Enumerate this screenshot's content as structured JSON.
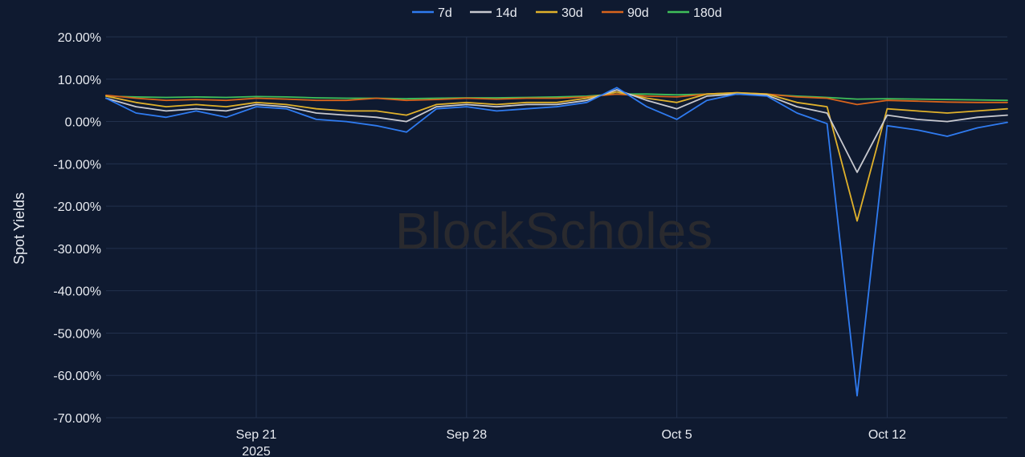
{
  "watermark": "BlockScholes",
  "chart_data": {
    "type": "line",
    "ylabel": "Spot Yields",
    "xlabel": "",
    "title": "",
    "ylim": [
      -70,
      20
    ],
    "yticks": [
      {
        "value": 20,
        "label": "20.00%"
      },
      {
        "value": 10,
        "label": "10.00%"
      },
      {
        "value": 0,
        "label": "0.00%"
      },
      {
        "value": -10,
        "label": "-10.00%"
      },
      {
        "value": -20,
        "label": "-20.00%"
      },
      {
        "value": -30,
        "label": "-30.00%"
      },
      {
        "value": -40,
        "label": "-40.00%"
      },
      {
        "value": -50,
        "label": "-50.00%"
      },
      {
        "value": -60,
        "label": "-60.00%"
      },
      {
        "value": -70,
        "label": "-70.00%"
      }
    ],
    "xlim": [
      "2025-09-16",
      "2025-10-16"
    ],
    "xticks": [
      {
        "value": "2025-09-21",
        "label": "Sep 21",
        "sublabel": "2025"
      },
      {
        "value": "2025-09-28",
        "label": "Sep 28",
        "sublabel": ""
      },
      {
        "value": "2025-10-05",
        "label": "Oct 5",
        "sublabel": ""
      },
      {
        "value": "2025-10-12",
        "label": "Oct 12",
        "sublabel": ""
      }
    ],
    "grid": true,
    "legend": {
      "placement": "top-center"
    },
    "series": [
      {
        "name": "7d",
        "color": "#2f7bf0",
        "x": [
          "2025-09-16",
          "2025-09-17",
          "2025-09-18",
          "2025-09-19",
          "2025-09-20",
          "2025-09-21",
          "2025-09-22",
          "2025-09-23",
          "2025-09-24",
          "2025-09-25",
          "2025-09-26",
          "2025-09-27",
          "2025-09-28",
          "2025-09-29",
          "2025-09-30",
          "2025-10-01",
          "2025-10-02",
          "2025-10-03",
          "2025-10-04",
          "2025-10-05",
          "2025-10-06",
          "2025-10-07",
          "2025-10-08",
          "2025-10-09",
          "2025-10-10",
          "2025-10-11",
          "2025-10-12",
          "2025-10-13",
          "2025-10-14",
          "2025-10-15",
          "2025-10-16"
        ],
        "y": [
          5.5,
          2.0,
          1.0,
          2.5,
          1.0,
          3.5,
          3.0,
          0.5,
          0.0,
          -1.0,
          -2.5,
          3.0,
          3.5,
          2.5,
          3.0,
          3.5,
          4.5,
          8.0,
          3.5,
          0.5,
          5.0,
          6.5,
          6.0,
          2.0,
          -0.5,
          -64.8,
          -1.0,
          -2.0,
          -3.5,
          -1.5,
          -0.2
        ]
      },
      {
        "name": "14d",
        "color": "#c8c9cf",
        "x": [
          "2025-09-16",
          "2025-09-17",
          "2025-09-18",
          "2025-09-19",
          "2025-09-20",
          "2025-09-21",
          "2025-09-22",
          "2025-09-23",
          "2025-09-24",
          "2025-09-25",
          "2025-09-26",
          "2025-09-27",
          "2025-09-28",
          "2025-09-29",
          "2025-09-30",
          "2025-10-01",
          "2025-10-02",
          "2025-10-03",
          "2025-10-04",
          "2025-10-05",
          "2025-10-06",
          "2025-10-07",
          "2025-10-08",
          "2025-10-09",
          "2025-10-10",
          "2025-10-11",
          "2025-10-12",
          "2025-10-13",
          "2025-10-14",
          "2025-10-15",
          "2025-10-16"
        ],
        "y": [
          5.5,
          3.5,
          2.5,
          3.0,
          2.5,
          4.0,
          3.5,
          2.0,
          1.5,
          1.0,
          0.0,
          3.5,
          4.0,
          3.5,
          4.0,
          4.0,
          5.0,
          7.5,
          5.0,
          3.0,
          6.0,
          6.5,
          6.2,
          3.5,
          2.0,
          -12.0,
          1.5,
          0.5,
          0.0,
          1.0,
          1.5
        ]
      },
      {
        "name": "30d",
        "color": "#e0b12b",
        "x": [
          "2025-09-16",
          "2025-09-17",
          "2025-09-18",
          "2025-09-19",
          "2025-09-20",
          "2025-09-21",
          "2025-09-22",
          "2025-09-23",
          "2025-09-24",
          "2025-09-25",
          "2025-09-26",
          "2025-09-27",
          "2025-09-28",
          "2025-09-29",
          "2025-09-30",
          "2025-10-01",
          "2025-10-02",
          "2025-10-03",
          "2025-10-04",
          "2025-10-05",
          "2025-10-06",
          "2025-10-07",
          "2025-10-08",
          "2025-10-09",
          "2025-10-10",
          "2025-10-11",
          "2025-10-12",
          "2025-10-13",
          "2025-10-14",
          "2025-10-15",
          "2025-10-16"
        ],
        "y": [
          6.0,
          4.5,
          3.5,
          4.0,
          3.5,
          4.5,
          4.0,
          3.0,
          2.5,
          2.5,
          1.5,
          4.0,
          4.5,
          4.0,
          4.5,
          4.5,
          5.5,
          7.0,
          5.5,
          4.5,
          6.5,
          6.8,
          6.5,
          4.5,
          3.5,
          -23.5,
          3.0,
          2.5,
          2.0,
          2.5,
          3.0
        ]
      },
      {
        "name": "90d",
        "color": "#d8641c",
        "x": [
          "2025-09-16",
          "2025-09-17",
          "2025-09-18",
          "2025-09-19",
          "2025-09-20",
          "2025-09-21",
          "2025-09-22",
          "2025-09-23",
          "2025-09-24",
          "2025-09-25",
          "2025-09-26",
          "2025-09-27",
          "2025-09-28",
          "2025-09-29",
          "2025-09-30",
          "2025-10-01",
          "2025-10-02",
          "2025-10-03",
          "2025-10-04",
          "2025-10-05",
          "2025-10-06",
          "2025-10-07",
          "2025-10-08",
          "2025-10-09",
          "2025-10-10",
          "2025-10-11",
          "2025-10-12",
          "2025-10-13",
          "2025-10-14",
          "2025-10-15",
          "2025-10-16"
        ],
        "y": [
          6.2,
          5.5,
          5.0,
          5.2,
          5.0,
          5.5,
          5.3,
          5.0,
          5.0,
          5.5,
          5.0,
          5.2,
          5.5,
          5.3,
          5.5,
          5.5,
          5.8,
          6.5,
          6.0,
          5.8,
          6.5,
          6.8,
          6.5,
          5.8,
          5.5,
          4.0,
          5.0,
          4.8,
          4.6,
          4.5,
          4.5
        ]
      },
      {
        "name": "180d",
        "color": "#3fbf5a",
        "x": [
          "2025-09-16",
          "2025-09-17",
          "2025-09-18",
          "2025-09-19",
          "2025-09-20",
          "2025-09-21",
          "2025-09-22",
          "2025-09-23",
          "2025-09-24",
          "2025-09-25",
          "2025-09-26",
          "2025-09-27",
          "2025-09-28",
          "2025-09-29",
          "2025-09-30",
          "2025-10-01",
          "2025-10-02",
          "2025-10-03",
          "2025-10-04",
          "2025-10-05",
          "2025-10-06",
          "2025-10-07",
          "2025-10-08",
          "2025-10-09",
          "2025-10-10",
          "2025-10-11",
          "2025-10-12",
          "2025-10-13",
          "2025-10-14",
          "2025-10-15",
          "2025-10-16"
        ],
        "y": [
          6.0,
          5.8,
          5.7,
          5.8,
          5.7,
          5.9,
          5.8,
          5.6,
          5.5,
          5.5,
          5.4,
          5.5,
          5.6,
          5.6,
          5.7,
          5.8,
          6.0,
          6.5,
          6.5,
          6.3,
          6.5,
          6.6,
          6.4,
          6.0,
          5.7,
          5.3,
          5.4,
          5.3,
          5.2,
          5.1,
          5.0
        ]
      }
    ]
  }
}
